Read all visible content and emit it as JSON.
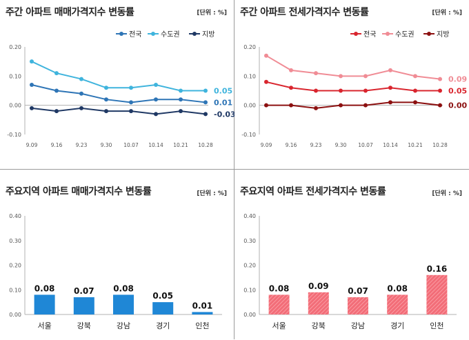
{
  "chart_data": [
    {
      "type": "line",
      "title": "주간 아파트 매매가격지수 변동률",
      "unit": "[단위 : %]",
      "x": [
        "9.09",
        "9.16",
        "9.23",
        "9.30",
        "10.07",
        "10.14",
        "10.21",
        "10.28"
      ],
      "ylim": [
        -0.1,
        0.2
      ],
      "yticks": [
        "-0.10",
        "0.00",
        "0.10",
        "0.20"
      ],
      "legend_position": "top-right",
      "grid": false,
      "series": [
        {
          "name": "전국",
          "values": [
            0.07,
            0.05,
            0.04,
            0.02,
            0.01,
            0.02,
            0.02,
            0.01
          ],
          "color": "#2e75b6",
          "end_label": "0.01"
        },
        {
          "name": "수도권",
          "values": [
            0.15,
            0.11,
            0.09,
            0.06,
            0.06,
            0.07,
            0.05,
            0.05
          ],
          "color": "#3fb4dd",
          "end_label": "0.05"
        },
        {
          "name": "지방",
          "values": [
            -0.01,
            -0.02,
            -0.01,
            -0.02,
            -0.02,
            -0.03,
            -0.02,
            -0.03
          ],
          "color": "#1f3864",
          "end_label": "-0.03"
        }
      ]
    },
    {
      "type": "line",
      "title": "주간 아파트 전세가격지수 변동률",
      "unit": "[단위 : %]",
      "x": [
        "9.09",
        "9.16",
        "9.23",
        "9.30",
        "10.07",
        "10.14",
        "10.21",
        "10.28"
      ],
      "ylim": [
        -0.1,
        0.2
      ],
      "yticks": [
        "-0.10",
        "0.00",
        "0.10",
        "0.20"
      ],
      "legend_position": "top-right",
      "grid": false,
      "series": [
        {
          "name": "전국",
          "values": [
            0.08,
            0.06,
            0.05,
            0.05,
            0.05,
            0.06,
            0.05,
            0.05
          ],
          "color": "#d9252e",
          "end_label": "0.05"
        },
        {
          "name": "수도권",
          "values": [
            0.17,
            0.12,
            0.11,
            0.1,
            0.1,
            0.12,
            0.1,
            0.09
          ],
          "color": "#f08c95",
          "end_label": "0.09"
        },
        {
          "name": "지방",
          "values": [
            0.0,
            0.0,
            -0.01,
            0.0,
            0.0,
            0.01,
            0.01,
            0.0
          ],
          "color": "#8c1010",
          "end_label": "0.00"
        }
      ]
    },
    {
      "type": "bar",
      "title": "주요지역 아파트 매매가격지수 변동률",
      "unit": "[단위 : %]",
      "categories": [
        "서울",
        "강북",
        "강남",
        "경기",
        "인천"
      ],
      "values": [
        0.08,
        0.07,
        0.08,
        0.05,
        0.01
      ],
      "labels": [
        "0.08",
        "0.07",
        "0.08",
        "0.05",
        "0.01"
      ],
      "ylim": [
        0,
        0.4
      ],
      "yticks": [
        "0.00",
        "0.10",
        "0.20",
        "0.30",
        "0.40"
      ],
      "color": "#1f87d6",
      "pattern": "solid",
      "grid": false
    },
    {
      "type": "bar",
      "title": "주요지역 아파트 전세가격지수 변동률",
      "unit": "[단위 : %]",
      "categories": [
        "서울",
        "강북",
        "강남",
        "경기",
        "인천"
      ],
      "values": [
        0.08,
        0.09,
        0.07,
        0.08,
        0.16
      ],
      "labels": [
        "0.08",
        "0.09",
        "0.07",
        "0.08",
        "0.16"
      ],
      "ylim": [
        0,
        0.4
      ],
      "yticks": [
        "0.00",
        "0.10",
        "0.20",
        "0.30",
        "0.40"
      ],
      "color": "#f26d78",
      "pattern": "hatched",
      "grid": false
    }
  ]
}
